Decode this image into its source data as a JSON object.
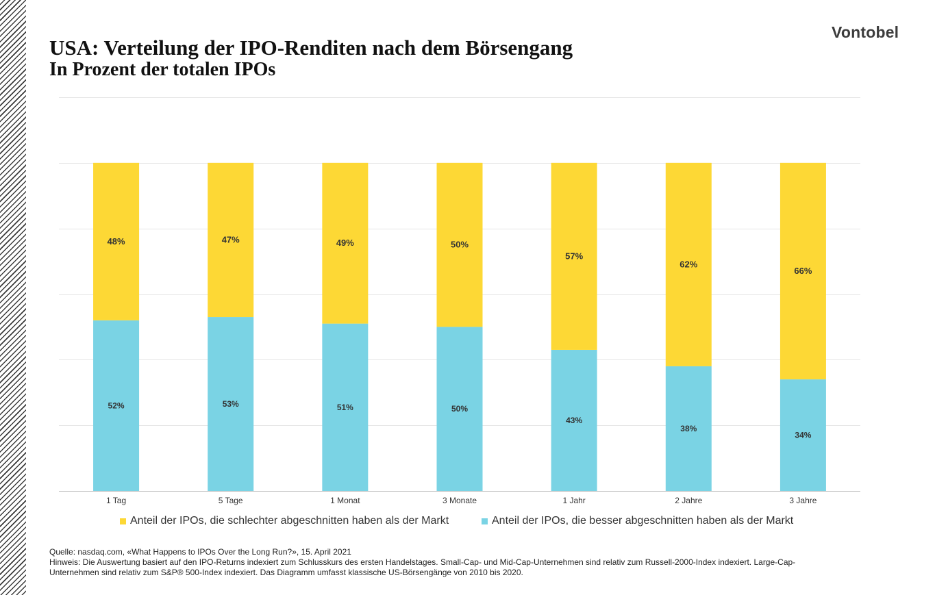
{
  "header": {
    "title": "USA: Verteilung der IPO-Renditen nach dem Börsengang",
    "subtitle": "In Prozent der totalen IPOs",
    "brand": "Vontobel"
  },
  "colors": {
    "worse": "#FDD835",
    "better": "#7AD3E4",
    "grid": "#e6e6e6",
    "axis": "#bfbfbf"
  },
  "chart_data": {
    "type": "bar",
    "stacked": true,
    "categories": [
      "1 Tag",
      "5 Tage",
      "1 Monat",
      "3 Monate",
      "1 Jahr",
      "2 Jahre",
      "3 Jahre"
    ],
    "series": [
      {
        "name": "Anteil der IPOs, die besser abgeschnitten haben als der Markt",
        "color": "#7AD3E4",
        "values": [
          52,
          53,
          51,
          50,
          43,
          38,
          34
        ],
        "labels": [
          "52%",
          "53%",
          "51%",
          "50%",
          "43%",
          "38%",
          "34%"
        ]
      },
      {
        "name": "Anteil der IPOs, die schlechter abgeschnitten haben als der Markt",
        "color": "#FDD835",
        "values": [
          48,
          47,
          49,
          50,
          57,
          62,
          66
        ],
        "labels": [
          "48%",
          "47%",
          "49%",
          "50%",
          "57%",
          "62%",
          "66%"
        ]
      }
    ],
    "ylim": [
      0,
      120
    ],
    "grid": true,
    "legend_position": "bottom"
  },
  "legend": {
    "worse_label": "Anteil der IPOs, die schlechter abgeschnitten haben als der Markt",
    "better_label": "Anteil der IPOs, die besser abgeschnitten haben als der Markt"
  },
  "notes": {
    "source": "Quelle: nasdaq.com, «What Happens to IPOs Over the Long Run?», 15. April 2021",
    "hint": "Hinweis: Die Auswertung basiert auf den IPO-Returns indexiert zum Schlusskurs des ersten Handelstages. Small-Cap- und Mid-Cap-Unternehmen sind relativ zum Russell-2000-Index indexiert. Large-Cap-Unternehmen sind relativ zum S&P® 500-Index indexiert. Das Diagramm umfasst klassische US-Börsengänge von 2010 bis 2020."
  }
}
